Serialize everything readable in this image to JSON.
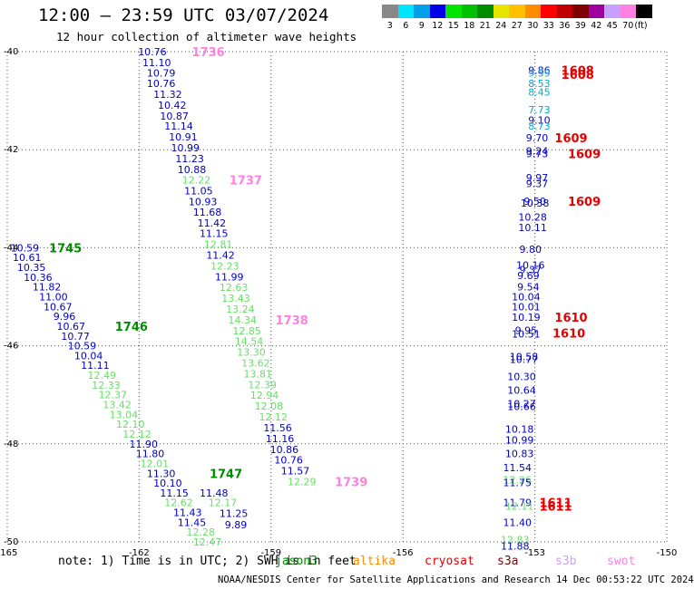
{
  "header": {
    "title": "12:00 – 23:59 UTC 03/07/2024",
    "subtitle": "12 hour collection of altimeter wave heights"
  },
  "color_scale": {
    "unit": "(ft)",
    "steps": [
      {
        "label": "3",
        "color": "#888888"
      },
      {
        "label": "6",
        "color": "#00e5ff"
      },
      {
        "label": "9",
        "color": "#00a0e6"
      },
      {
        "label": "12",
        "color": "#0000e6"
      },
      {
        "label": "15",
        "color": "#00e600"
      },
      {
        "label": "18",
        "color": "#00c000"
      },
      {
        "label": "21",
        "color": "#008c00"
      },
      {
        "label": "24",
        "color": "#e6e600"
      },
      {
        "label": "27",
        "color": "#ffc000"
      },
      {
        "label": "30",
        "color": "#ff8c00"
      },
      {
        "label": "33",
        "color": "#ff0000"
      },
      {
        "label": "36",
        "color": "#c00000"
      },
      {
        "label": "39",
        "color": "#800000"
      },
      {
        "label": "42",
        "color": "#a000a0"
      },
      {
        "label": "45",
        "color": "#c8a0ff"
      },
      {
        "label": "70",
        "color": "#ff80e0"
      },
      {
        "label": "",
        "color": "#000000"
      }
    ]
  },
  "chart_data": {
    "type": "scatter",
    "xlim": [
      -165,
      -150
    ],
    "ylim": [
      -50,
      -40
    ],
    "x_ticks": [
      "-165",
      "-162",
      "-159",
      "-156",
      "-153",
      "-150"
    ],
    "y_ticks": [
      "-40",
      "-42",
      "-44",
      "-46",
      "-48",
      "-50"
    ],
    "grid": true,
    "colors": {
      "blue": "#0000cc",
      "lightgreen": "#66e066",
      "green": "#008c00",
      "cyan": "#00aacc",
      "red": "#e60000",
      "pink": "#ff80e0"
    },
    "tracks": [
      {
        "values": [
          [
            "10.76",
            -161.7,
            -40.0,
            "blue"
          ],
          [
            "11.10",
            -161.6,
            -40.22,
            "blue"
          ],
          [
            "10.79",
            -161.5,
            -40.43,
            "blue"
          ],
          [
            "10.76",
            -161.5,
            -40.65,
            "blue"
          ],
          [
            "11.32",
            -161.35,
            -40.87,
            "blue"
          ],
          [
            "10.42",
            -161.25,
            -41.09,
            "blue"
          ],
          [
            "10.87",
            -161.2,
            -41.31,
            "blue"
          ],
          [
            "11.14",
            -161.1,
            -41.52,
            "blue"
          ],
          [
            "10.91",
            -161.0,
            -41.74,
            "blue"
          ],
          [
            "10.99",
            -160.95,
            -41.96,
            "blue"
          ],
          [
            "11.23",
            -160.85,
            -42.18,
            "blue"
          ],
          [
            "10.88",
            -160.8,
            -42.4,
            "blue"
          ],
          [
            "12.22",
            -160.7,
            -42.62,
            "lightgreen"
          ],
          [
            "11.05",
            -160.65,
            -42.84,
            "blue"
          ],
          [
            "10.93",
            -160.55,
            -43.06,
            "blue"
          ],
          [
            "11.68",
            -160.45,
            -43.27,
            "blue"
          ],
          [
            "11.42",
            -160.35,
            -43.49,
            "blue"
          ],
          [
            "11.15",
            -160.3,
            -43.71,
            "blue"
          ],
          [
            "12.81",
            -160.2,
            -43.93,
            "lightgreen"
          ],
          [
            "11.42",
            -160.15,
            -44.15,
            "blue"
          ],
          [
            "12.23",
            -160.05,
            -44.37,
            "lightgreen"
          ],
          [
            "11.99",
            -159.95,
            -44.59,
            "blue"
          ],
          [
            "12.63",
            -159.85,
            -44.81,
            "lightgreen"
          ],
          [
            "13.43",
            -159.8,
            -45.03,
            "lightgreen"
          ],
          [
            "13.24",
            -159.7,
            -45.25,
            "lightgreen"
          ],
          [
            "14.34",
            -159.65,
            -45.47,
            "lightgreen"
          ],
          [
            "12.85",
            -159.55,
            -45.69,
            "lightgreen"
          ],
          [
            "14.54",
            -159.5,
            -45.91,
            "lightgreen"
          ],
          [
            "13.30",
            -159.45,
            -46.13,
            "lightgreen"
          ],
          [
            "13.62",
            -159.35,
            -46.35,
            "lightgreen"
          ],
          [
            "13.81",
            -159.3,
            -46.57,
            "lightgreen"
          ],
          [
            "12.39",
            -159.2,
            -46.79,
            "lightgreen"
          ],
          [
            "12.94",
            -159.15,
            -47.01,
            "lightgreen"
          ],
          [
            "12.08",
            -159.05,
            -47.23,
            "lightgreen"
          ],
          [
            "12.12",
            -158.95,
            -47.45,
            "lightgreen"
          ],
          [
            "11.56",
            -158.85,
            -47.67,
            "blue"
          ],
          [
            "11.16",
            -158.8,
            -47.89,
            "blue"
          ],
          [
            "10.86",
            -158.7,
            -48.11,
            "blue"
          ],
          [
            "10.76",
            -158.6,
            -48.33,
            "blue"
          ],
          [
            "11.57",
            -158.45,
            -48.55,
            "blue"
          ],
          [
            "12.29",
            -158.3,
            -48.77,
            "lightgreen"
          ]
        ]
      },
      {
        "values": [
          [
            "10.59",
            -164.6,
            -44.0,
            "blue"
          ],
          [
            "10.61",
            -164.55,
            -44.2,
            "blue"
          ],
          [
            "10.35",
            -164.45,
            -44.4,
            "blue"
          ],
          [
            "10.36",
            -164.3,
            -44.6,
            "blue"
          ],
          [
            "11.82",
            -164.1,
            -44.8,
            "blue"
          ],
          [
            "11.00",
            -163.95,
            -45.0,
            "blue"
          ],
          [
            "10.67",
            -163.85,
            -45.2,
            "blue"
          ],
          [
            "9.96",
            -163.7,
            -45.4,
            "blue"
          ],
          [
            "10.67",
            -163.55,
            -45.6,
            "blue"
          ],
          [
            "10.77",
            -163.45,
            -45.8,
            "blue"
          ],
          [
            "10.59",
            -163.3,
            -46.0,
            "blue"
          ],
          [
            "10.04",
            -163.15,
            -46.2,
            "blue"
          ],
          [
            "11.11",
            -163.0,
            -46.4,
            "blue"
          ],
          [
            "12.49",
            -162.85,
            -46.6,
            "lightgreen"
          ],
          [
            "12.33",
            -162.75,
            -46.8,
            "lightgreen"
          ],
          [
            "12.37",
            -162.6,
            -47.0,
            "lightgreen"
          ],
          [
            "13.42",
            -162.5,
            -47.2,
            "lightgreen"
          ],
          [
            "13.04",
            -162.35,
            -47.4,
            "lightgreen"
          ],
          [
            "12.10",
            -162.2,
            -47.6,
            "lightgreen"
          ],
          [
            "12.12",
            -162.05,
            -47.8,
            "lightgreen"
          ],
          [
            "11.90",
            -161.9,
            -48.0,
            "blue"
          ],
          [
            "11.80",
            -161.75,
            -48.2,
            "blue"
          ],
          [
            "12.01",
            -161.65,
            -48.4,
            "lightgreen"
          ],
          [
            "11.30",
            -161.5,
            -48.6,
            "blue"
          ],
          [
            "10.10",
            -161.35,
            -48.8,
            "blue"
          ],
          [
            "11.15",
            -161.2,
            -49.0,
            "blue"
          ],
          [
            "12.62",
            -161.1,
            -49.2,
            "lightgreen"
          ],
          [
            "11.43",
            -160.9,
            -49.4,
            "blue"
          ],
          [
            "11.45",
            -160.8,
            -49.6,
            "blue"
          ],
          [
            "12.28",
            -160.6,
            -49.8,
            "lightgreen"
          ],
          [
            "12.47",
            -160.45,
            -50.0,
            "lightgreen"
          ],
          [
            "11.48",
            -160.3,
            -49.0,
            "blue"
          ],
          [
            "12.17",
            -160.1,
            -49.2,
            "lightgreen"
          ],
          [
            "11.25",
            -159.85,
            -49.42,
            "blue"
          ],
          [
            "9.89",
            -159.8,
            -49.65,
            "blue"
          ]
        ]
      },
      {
        "values": [
          [
            "9.86",
            -152.9,
            -40.38,
            "blue"
          ],
          [
            "9.59",
            -152.9,
            -40.43,
            "cyan"
          ],
          [
            "8.53",
            -152.9,
            -40.65,
            "cyan"
          ],
          [
            "8.45",
            -152.9,
            -40.82,
            "cyan"
          ],
          [
            "7.73",
            -152.9,
            -41.18,
            "cyan"
          ],
          [
            "9.10",
            -152.9,
            -41.4,
            "blue"
          ],
          [
            "8.73",
            -152.9,
            -41.52,
            "cyan"
          ],
          [
            "9.70",
            -152.95,
            -41.76,
            "blue"
          ],
          [
            "9.24",
            -152.95,
            -42.02,
            "blue"
          ],
          [
            "9.73",
            -152.95,
            -42.08,
            "blue"
          ],
          [
            "9.97",
            -152.95,
            -42.57,
            "blue"
          ],
          [
            "9.37",
            -152.95,
            -42.69,
            "blue"
          ],
          [
            "9.50",
            -153.0,
            -43.05,
            "blue"
          ],
          [
            "10.38",
            -153.0,
            -43.09,
            "blue"
          ],
          [
            "10.28",
            -153.05,
            -43.37,
            "blue"
          ],
          [
            "10.11",
            -153.05,
            -43.59,
            "blue"
          ],
          [
            "9.80",
            -153.1,
            -44.03,
            "blue"
          ],
          [
            "10.16",
            -153.1,
            -44.35,
            "blue"
          ],
          [
            "9.37",
            -153.1,
            -44.45,
            "blue"
          ],
          [
            "9.69",
            -153.15,
            -44.57,
            "blue"
          ],
          [
            "9.54",
            -153.15,
            -44.8,
            "blue"
          ],
          [
            "10.04",
            -153.2,
            -45.0,
            "blue"
          ],
          [
            "10.01",
            -153.2,
            -45.2,
            "blue"
          ],
          [
            "10.19",
            -153.2,
            -45.42,
            "blue"
          ],
          [
            "9.95",
            -153.2,
            -45.68,
            "blue"
          ],
          [
            "10.51",
            -153.2,
            -45.76,
            "blue"
          ],
          [
            "10.58",
            -153.25,
            -46.22,
            "blue"
          ],
          [
            "10.77",
            -153.25,
            -46.28,
            "blue"
          ],
          [
            "10.30",
            -153.3,
            -46.63,
            "blue"
          ],
          [
            "10.64",
            -153.3,
            -46.9,
            "blue"
          ],
          [
            "10.27",
            -153.3,
            -47.18,
            "blue"
          ],
          [
            "10.66",
            -153.3,
            -47.24,
            "blue"
          ],
          [
            "10.18",
            -153.35,
            -47.7,
            "blue"
          ],
          [
            "10.99",
            -153.35,
            -47.92,
            "blue"
          ],
          [
            "10.83",
            -153.35,
            -48.2,
            "blue"
          ],
          [
            "11.54",
            -153.4,
            -48.48,
            "blue"
          ],
          [
            "12.26",
            -153.4,
            -48.73,
            "lightgreen"
          ],
          [
            "11.75",
            -153.4,
            -48.79,
            "blue"
          ],
          [
            "11.79",
            -153.4,
            -49.2,
            "blue"
          ],
          [
            "12.11",
            -153.35,
            -49.27,
            "lightgreen"
          ],
          [
            "11.40",
            -153.4,
            -49.6,
            "blue"
          ],
          [
            "12.83",
            -153.45,
            -49.95,
            "lightgreen"
          ],
          [
            "11.88",
            -153.45,
            -50.08,
            "blue"
          ]
        ]
      }
    ],
    "time_labels": [
      {
        "text": "1736",
        "x": -160.8,
        "y": -40.0,
        "color": "pink"
      },
      {
        "text": "1737",
        "x": -159.95,
        "y": -42.62,
        "color": "pink"
      },
      {
        "text": "1738",
        "x": -158.9,
        "y": -45.47,
        "color": "pink"
      },
      {
        "text": "1739",
        "x": -157.55,
        "y": -48.77,
        "color": "pink"
      },
      {
        "text": "1745",
        "x": -164.05,
        "y": -44.0,
        "color": "green"
      },
      {
        "text": "1746",
        "x": -162.55,
        "y": -45.6,
        "color": "green"
      },
      {
        "text": "1747",
        "x": -160.4,
        "y": -48.6,
        "color": "green"
      },
      {
        "text": "1608",
        "x": -152.4,
        "y": -40.38,
        "color": "red"
      },
      {
        "text": "1608",
        "x": -152.4,
        "y": -40.46,
        "color": "red"
      },
      {
        "text": "1609",
        "x": -152.55,
        "y": -41.76,
        "color": "red"
      },
      {
        "text": "1609",
        "x": -152.25,
        "y": -42.08,
        "color": "red"
      },
      {
        "text": "1609",
        "x": -152.25,
        "y": -43.05,
        "color": "red"
      },
      {
        "text": "1610",
        "x": -152.55,
        "y": -45.42,
        "color": "red"
      },
      {
        "text": "1610",
        "x": -152.6,
        "y": -45.74,
        "color": "red"
      },
      {
        "text": "1611",
        "x": -152.9,
        "y": -49.2,
        "color": "red"
      },
      {
        "text": "1611",
        "x": -152.9,
        "y": -49.27,
        "color": "red"
      }
    ]
  },
  "footer": {
    "note": "note: 1) Time is in UTC; 2) SWH is in feet",
    "satellites": [
      {
        "name": "jason3",
        "color": "#008c00"
      },
      {
        "name": "altika",
        "color": "#ff8c00"
      },
      {
        "name": "cryosat",
        "color": "#e60000"
      },
      {
        "name": "s3a",
        "color": "#800000"
      },
      {
        "name": "s3b",
        "color": "#c8a0ff"
      },
      {
        "name": "swot",
        "color": "#ff80e0"
      }
    ],
    "credit": "NOAA/NESDIS Center for Satellite Applications and Research   14 Dec 00:53:22 UTC 2024"
  }
}
